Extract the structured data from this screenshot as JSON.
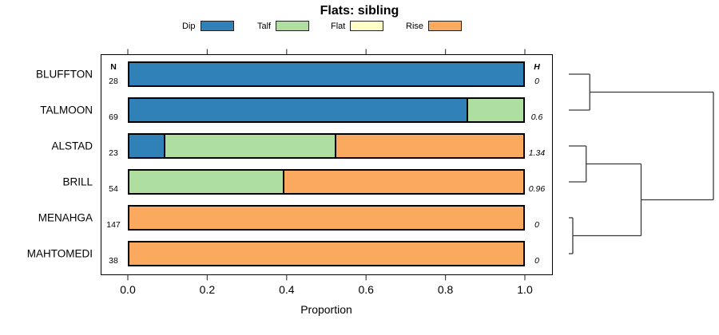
{
  "chart": {
    "title": "Flats: sibling",
    "xlabel": "Proportion",
    "n_header": "N",
    "h_header": "H"
  },
  "chart_data": {
    "type": "bar",
    "orientation": "horizontal",
    "stacked": true,
    "title": "Flats: sibling",
    "xlabel": "Proportion",
    "xlim": [
      0,
      1
    ],
    "x_ticks": [
      0.0,
      0.2,
      0.4,
      0.6,
      0.8,
      1.0
    ],
    "grid": false,
    "legend_position": "top",
    "categories": [
      "BLUFFTON",
      "TALMOON",
      "ALSTAD",
      "BRILL",
      "MENAHGA",
      "MAHTOMEDI"
    ],
    "n_values": [
      "28",
      "69",
      "23",
      "54",
      "147",
      "38"
    ],
    "h_values": [
      "0",
      "0.6",
      "1.34",
      "0.96",
      "0",
      "0"
    ],
    "series": [
      {
        "name": "Dip",
        "color": "#2F81B8",
        "values": [
          1.0,
          0.855,
          0.087,
          0,
          0,
          0
        ]
      },
      {
        "name": "Talf",
        "color": "#AEDEA0",
        "values": [
          0,
          0.145,
          0.435,
          0.389,
          0,
          0
        ]
      },
      {
        "name": "Flat",
        "color": "#FFFFC6",
        "values": [
          0,
          0,
          0,
          0,
          0,
          0
        ]
      },
      {
        "name": "Rise",
        "color": "#FAA95F",
        "values": [
          0,
          0,
          0.478,
          0.611,
          1.0,
          1.0
        ]
      }
    ],
    "dendrogram": {
      "line_color": "#3a3a3a",
      "tree": {
        "h": 2.0,
        "children": [
          {
            "h": 0.29,
            "children": [
              {
                "leaf": 0
              },
              {
                "leaf": 1
              }
            ]
          },
          {
            "h": 1.0,
            "children": [
              {
                "h": 0.24,
                "children": [
                  {
                    "leaf": 2
                  },
                  {
                    "leaf": 3
                  }
                ]
              },
              {
                "h": 0.055,
                "children": [
                  {
                    "leaf": 4
                  },
                  {
                    "leaf": 5
                  }
                ]
              }
            ]
          }
        ]
      }
    }
  }
}
